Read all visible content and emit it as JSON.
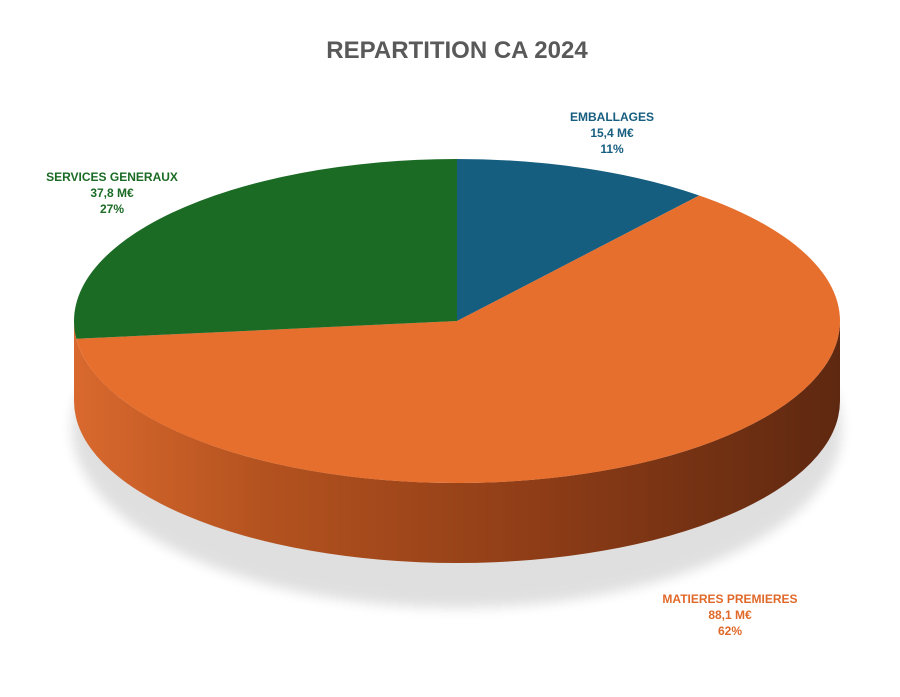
{
  "chart_data": {
    "type": "pie",
    "title": "REPARTITION CA 2024",
    "style": "3d",
    "slices": [
      {
        "name": "EMBALLAGES",
        "value": 15.4,
        "value_label": "15,4 M€",
        "percent_label": "11%",
        "color": "#165e80",
        "side_color": "#0e3f57"
      },
      {
        "name": "MATIERES PREMIERES",
        "value": 88.1,
        "value_label": "88,1 M€",
        "percent_label": "62%",
        "color": "#e66f2e",
        "side_color": "#9a4418"
      },
      {
        "name": "SERVICES GENERAUX",
        "value": 37.8,
        "value_label": "37,8 M€",
        "percent_label": "27%",
        "color": "#1b6b25",
        "side_color": "#114517"
      }
    ]
  }
}
